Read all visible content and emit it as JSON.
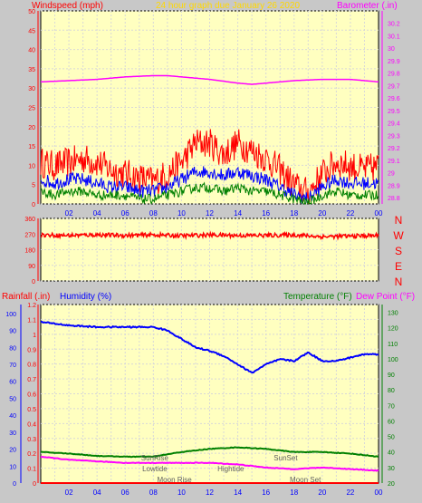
{
  "colors": {
    "background": "#c8c8c8",
    "plot_bg": "#ffffc0",
    "grid": "#d8d8d8",
    "wind_gust": "#ff0000",
    "wind_avg": "#0000ff",
    "wind_low": "#008000",
    "barometer": "#ff00ff",
    "direction": "#ff0000",
    "rainfall": "#ff0000",
    "humidity": "#0000ff",
    "temperature": "#008000",
    "dew_point": "#ff00ff",
    "title": "#ffd800",
    "event_label": "#606060"
  },
  "header": {
    "windspeed_label": "Windspeed (mph)",
    "title": "24 hour graph due   January 26 2020",
    "barometer_label": "Barometer (.in)"
  },
  "lower_header": {
    "rainfall_label": "Rainfall (.in)",
    "humidity_label": "Humidity (%)",
    "temperature_label": "Temperature (°F)",
    "dew_point_label": "Dew Point (°F)"
  },
  "compass_labels": [
    "N",
    "W",
    "S",
    "E",
    "N"
  ],
  "time_ticks": [
    "02",
    "04",
    "06",
    "08",
    "10",
    "12",
    "14",
    "16",
    "18",
    "20",
    "22",
    "00"
  ],
  "events": [
    {
      "label": "SunRise",
      "hour": 8.1,
      "row": 0
    },
    {
      "label": "Lowtide",
      "hour": 8.1,
      "row": 1
    },
    {
      "label": "Moon Rise",
      "hour": 9.5,
      "row": 2
    },
    {
      "label": "Hightide",
      "hour": 13.5,
      "row": 1
    },
    {
      "label": "SunSet",
      "hour": 17.4,
      "row": 0
    },
    {
      "label": "Moon Set",
      "hour": 18.8,
      "row": 2
    }
  ],
  "chart_data": [
    {
      "type": "line",
      "name": "wind_barometer",
      "x_ticks": [
        "02",
        "04",
        "06",
        "08",
        "10",
        "12",
        "14",
        "16",
        "18",
        "20",
        "22",
        "00"
      ],
      "y_left": {
        "label": "Windspeed (mph)",
        "ticks": [
          "0",
          "5",
          "10",
          "15",
          "20",
          "25",
          "30",
          "35",
          "40",
          "45",
          "50"
        ],
        "range": [
          0,
          50
        ]
      },
      "y_right": {
        "label": "Barometer (.in)",
        "ticks": [
          "28.8",
          "28.9",
          "29",
          "29.1",
          "29.2",
          "29.3",
          "29.4",
          "29.5",
          "29.6",
          "29.7",
          "29.8",
          "29.9",
          "30",
          "30.1",
          "30.2"
        ],
        "range": [
          28.75,
          30.3
        ]
      },
      "grid": true,
      "wind_gust": {
        "hour": [
          0,
          1,
          2,
          3,
          4,
          5,
          6,
          7,
          8,
          9,
          10,
          11,
          12,
          13,
          14,
          15,
          16,
          17,
          18,
          19,
          20,
          21,
          22,
          23,
          24
        ],
        "mph": [
          10,
          9,
          10,
          11,
          10,
          8,
          7,
          6,
          5,
          7,
          10,
          15,
          15,
          12,
          15,
          13,
          11,
          8,
          4,
          2,
          7,
          10,
          9,
          8,
          9
        ]
      },
      "wind_avg": {
        "hour": [
          0,
          1,
          2,
          3,
          4,
          5,
          6,
          7,
          8,
          9,
          10,
          11,
          12,
          13,
          14,
          15,
          16,
          17,
          18,
          19,
          20,
          21,
          22,
          23,
          24
        ],
        "mph": [
          6,
          5,
          6,
          6,
          5,
          4,
          4,
          3,
          3,
          4,
          6,
          8,
          8,
          7,
          8,
          7,
          6,
          4,
          2,
          1,
          4,
          6,
          5,
          5,
          5
        ]
      },
      "wind_low": {
        "hour": [
          0,
          1,
          2,
          3,
          4,
          5,
          6,
          7,
          8,
          9,
          10,
          11,
          12,
          13,
          14,
          15,
          16,
          17,
          18,
          19,
          20,
          21,
          22,
          23,
          24
        ],
        "mph": [
          3,
          2,
          3,
          3,
          2,
          2,
          2,
          1,
          1,
          2,
          3,
          4,
          4,
          3,
          4,
          3,
          3,
          2,
          1,
          0,
          2,
          3,
          2,
          2,
          2
        ]
      },
      "barometer": {
        "hour": [
          0,
          2,
          4,
          6,
          8,
          9,
          10,
          12,
          14,
          15,
          16,
          18,
          20,
          22,
          24
        ],
        "in": [
          29.73,
          29.74,
          29.75,
          29.77,
          29.78,
          29.78,
          29.77,
          29.75,
          29.72,
          29.71,
          29.72,
          29.74,
          29.75,
          29.75,
          29.73
        ]
      }
    },
    {
      "type": "line",
      "name": "wind_direction",
      "x_ticks": [
        "02",
        "04",
        "06",
        "08",
        "10",
        "12",
        "14",
        "16",
        "18",
        "20",
        "22",
        "00"
      ],
      "y_left": {
        "ticks": [
          "0",
          "90",
          "180",
          "270",
          "360"
        ],
        "range": [
          0,
          360
        ]
      },
      "compass": [
        "N",
        "W",
        "S",
        "E",
        "N"
      ],
      "direction": {
        "hour": [
          0,
          2,
          4,
          6,
          8,
          10,
          12,
          14,
          16,
          18,
          20,
          22,
          24
        ],
        "deg": [
          265,
          262,
          266,
          262,
          265,
          260,
          265,
          262,
          262,
          265,
          255,
          258,
          262
        ]
      }
    },
    {
      "type": "line",
      "name": "temp_humidity_rain",
      "x_ticks": [
        "02",
        "04",
        "06",
        "08",
        "10",
        "12",
        "14",
        "16",
        "18",
        "20",
        "22",
        "00"
      ],
      "y_left_rain": {
        "label": "Rainfall (.in)",
        "ticks": [
          "0",
          "0.1",
          "0.2",
          "0.3",
          "0.4",
          "0.5",
          "0.6",
          "0.7",
          "0.8",
          "0.9",
          "1",
          "1.1",
          "1.2"
        ],
        "range": [
          0,
          1.2
        ]
      },
      "y_left_humidity": {
        "label": "Humidity (%)",
        "ticks": [
          "0",
          "10",
          "20",
          "30",
          "40",
          "50",
          "60",
          "70",
          "80",
          "90",
          "100"
        ],
        "range": [
          0,
          105.3
        ]
      },
      "y_right": {
        "label": "Temperature (°F)",
        "ticks": [
          "20",
          "30",
          "40",
          "50",
          "60",
          "70",
          "80",
          "90",
          "100",
          "110",
          "120",
          "130"
        ],
        "range": [
          20,
          135
        ]
      },
      "grid": true,
      "humidity": {
        "hour": [
          0,
          1,
          2,
          4,
          6,
          8,
          9,
          10,
          11,
          12,
          13,
          14,
          15,
          16,
          17,
          18,
          19,
          20,
          21,
          22,
          23,
          24
        ],
        "pct": [
          95,
          94,
          93,
          92,
          92,
          92,
          90,
          85,
          80,
          78,
          75,
          70,
          65,
          70,
          73,
          72,
          77,
          72,
          72,
          74,
          76,
          76
        ]
      },
      "temperature": {
        "hour": [
          0,
          2,
          4,
          6,
          8,
          10,
          12,
          14,
          16,
          18,
          20,
          22,
          24
        ],
        "f": [
          40,
          39,
          37.5,
          37,
          37,
          40,
          42,
          43,
          42,
          40,
          40,
          39,
          37
        ]
      },
      "dew_point": {
        "hour": [
          0,
          2,
          4,
          6,
          8,
          10,
          12,
          14,
          16,
          18,
          20,
          22,
          24
        ],
        "f": [
          37,
          35,
          34,
          33,
          33,
          33,
          33,
          32,
          30,
          29,
          30,
          29,
          28
        ]
      },
      "rainfall": {
        "hour": [
          0,
          24
        ],
        "in": [
          0,
          0
        ]
      }
    }
  ]
}
